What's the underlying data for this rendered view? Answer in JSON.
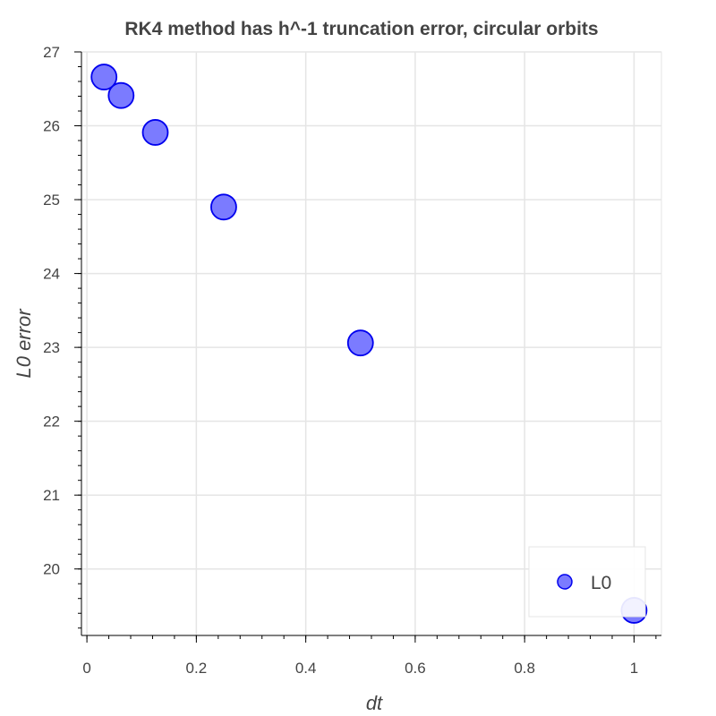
{
  "chart_data": {
    "type": "scatter",
    "title": "RK4 method has h^-1 truncation error, circular orbits",
    "xlabel": "dt",
    "ylabel": "L0 error",
    "xlim": [
      -0.01,
      1.05
    ],
    "ylim": [
      19.1,
      27.0
    ],
    "x_ticks": [
      0,
      0.2,
      0.4,
      0.6,
      0.8,
      1
    ],
    "x_tick_labels": [
      "0",
      "0.2",
      "0.4",
      "0.6",
      "0.8",
      "1"
    ],
    "y_ticks": [
      20,
      21,
      22,
      23,
      24,
      25,
      26,
      27
    ],
    "y_tick_labels": [
      "20",
      "21",
      "22",
      "23",
      "24",
      "25",
      "26",
      "27"
    ],
    "grid": true,
    "legend_position": "bottom-right",
    "series": [
      {
        "name": "L0",
        "color": "#7b7bff",
        "stroke": "#0000ee",
        "points": [
          {
            "x": 0.03125,
            "y": 26.66
          },
          {
            "x": 0.0625,
            "y": 26.41
          },
          {
            "x": 0.125,
            "y": 25.91
          },
          {
            "x": 0.25,
            "y": 24.9
          },
          {
            "x": 0.5,
            "y": 23.06
          },
          {
            "x": 1.0,
            "y": 19.44
          }
        ]
      }
    ]
  }
}
